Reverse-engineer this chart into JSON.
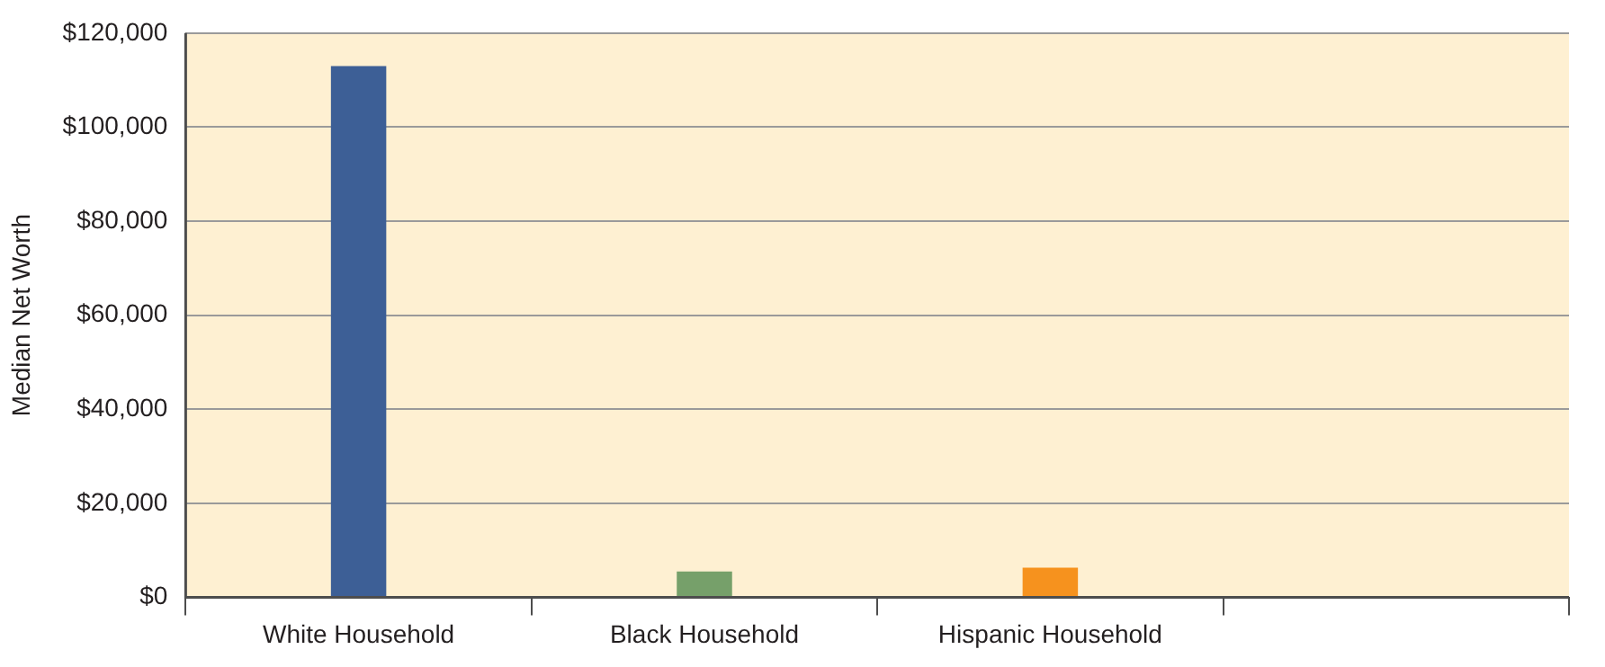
{
  "chart_data": {
    "type": "bar",
    "ylabel": "Median Net Worth",
    "categories": [
      "White Household",
      "Black Household",
      "Hispanic Household",
      null
    ],
    "values": [
      113000,
      5500,
      6300,
      null
    ],
    "colors": [
      "#3d5f96",
      "#76a06a",
      "#f6921e",
      "#000000"
    ],
    "ylim": [
      0,
      120000
    ],
    "yticks": [
      {
        "value": 0,
        "label": "$0"
      },
      {
        "value": 20000,
        "label": "$20,000"
      },
      {
        "value": 40000,
        "label": "$40,000"
      },
      {
        "value": 60000,
        "label": "$60,000"
      },
      {
        "value": 80000,
        "label": "$80,000"
      },
      {
        "value": 100000,
        "label": "$100,000"
      },
      {
        "value": 120000,
        "label": "$120,000"
      }
    ],
    "grid": "y",
    "legend": false
  }
}
